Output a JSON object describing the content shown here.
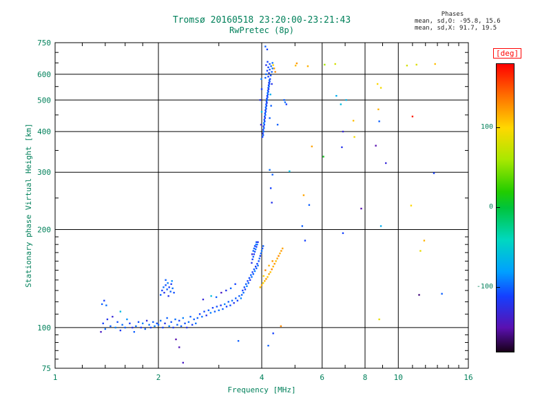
{
  "title": {
    "line1": "Tromsø 20160518 23:20:00-23:21:43",
    "line2": "RwPretec (8p)"
  },
  "stats": {
    "header": "Phases",
    "line_o": "mean, sd,O: -95.8, 15.6",
    "line_x": "mean, sd,X:  91.7, 19.5"
  },
  "colors": {
    "axis_text": "#00805a",
    "frame": "#000000",
    "background": "#ffffff",
    "deg_label": "#ff0000"
  },
  "colorbar": {
    "label": "[deg]",
    "range": [
      -180,
      180
    ],
    "ticks": [
      {
        "deg": 100,
        "label": "100"
      },
      {
        "deg": 0,
        "label": "0"
      },
      {
        "deg": -100,
        "label": "-100"
      }
    ],
    "stops": [
      {
        "deg": -180,
        "color": "#180018"
      },
      {
        "deg": -150,
        "color": "#5a10b0"
      },
      {
        "deg": -110,
        "color": "#1440ff"
      },
      {
        "deg": -80,
        "color": "#00a0ff"
      },
      {
        "deg": -40,
        "color": "#00d8c0"
      },
      {
        "deg": 0,
        "color": "#00c43c"
      },
      {
        "deg": 20,
        "color": "#22cc00"
      },
      {
        "deg": 60,
        "color": "#a8e800"
      },
      {
        "deg": 100,
        "color": "#ffd800"
      },
      {
        "deg": 140,
        "color": "#ff7000"
      },
      {
        "deg": 180,
        "color": "#ff0000"
      }
    ]
  },
  "chart_data": {
    "type": "scatter",
    "title": "Tromsø 20160518 23:20:00-23:21:43 RwPretec (8p)",
    "xlabel": "Frequency [MHz]",
    "ylabel": "Stationary phase Virtual Height [km]",
    "color_label": "[deg]",
    "x_scale": "log",
    "y_scale": "log",
    "xlim": [
      1,
      16
    ],
    "ylim": [
      75,
      750
    ],
    "x_ticks": [
      1,
      2,
      4,
      6,
      8,
      10,
      16
    ],
    "x_minor_ticks": [
      1.2,
      1.4,
      1.6,
      1.8,
      3,
      5,
      7,
      9,
      11,
      12,
      13,
      14,
      15
    ],
    "y_ticks": [
      75,
      100,
      200,
      300,
      400,
      500,
      600,
      750
    ],
    "y_minor_ticks": [
      80,
      85,
      90,
      95,
      110,
      120,
      130,
      140,
      150,
      160,
      170,
      180,
      190,
      250,
      350,
      450,
      550,
      650,
      700
    ],
    "x_gridlines": [
      2,
      4,
      6,
      8,
      10
    ],
    "y_gridlines": [
      100,
      200,
      300,
      400,
      500,
      600
    ],
    "color_range": [
      -180,
      180
    ],
    "points": [
      [
        1.36,
        97,
        -140
      ],
      [
        1.38,
        103,
        -110
      ],
      [
        1.4,
        99,
        -95
      ],
      [
        1.41,
        117,
        -95
      ],
      [
        1.42,
        106,
        -120
      ],
      [
        1.37,
        118,
        -100
      ],
      [
        1.39,
        121,
        -110
      ],
      [
        1.45,
        101,
        -100
      ],
      [
        1.47,
        108,
        -130
      ],
      [
        1.5,
        100,
        -90
      ],
      [
        1.52,
        104,
        -105
      ],
      [
        1.55,
        98,
        -115
      ],
      [
        1.55,
        112,
        -60
      ],
      [
        1.57,
        102,
        -95
      ],
      [
        1.6,
        100,
        -100
      ],
      [
        1.62,
        106,
        -85
      ],
      [
        1.65,
        103,
        -110
      ],
      [
        1.68,
        100,
        -120
      ],
      [
        1.7,
        97,
        -100
      ],
      [
        1.72,
        101,
        -95
      ],
      [
        1.75,
        104,
        -105
      ],
      [
        1.78,
        100,
        -115
      ],
      [
        1.8,
        103,
        -90
      ],
      [
        1.83,
        99,
        -100
      ],
      [
        1.85,
        105,
        -125
      ],
      [
        1.88,
        102,
        -95
      ],
      [
        1.9,
        100,
        -110
      ],
      [
        1.93,
        104,
        -100
      ],
      [
        1.95,
        101,
        -90
      ],
      [
        1.98,
        103,
        -105
      ],
      [
        2.03,
        126,
        -100
      ],
      [
        2.05,
        130,
        -110
      ],
      [
        2.07,
        133,
        -95
      ],
      [
        2.08,
        128,
        -120
      ],
      [
        2.1,
        135,
        -105
      ],
      [
        2.12,
        131,
        -100
      ],
      [
        2.13,
        137,
        -90
      ],
      [
        2.15,
        133,
        -110
      ],
      [
        2.17,
        129,
        -100
      ],
      [
        2.18,
        136,
        -115
      ],
      [
        2.2,
        132,
        -95
      ],
      [
        2.22,
        128,
        -105
      ],
      [
        2.1,
        140,
        -100
      ],
      [
        2.14,
        125,
        -120
      ],
      [
        2.19,
        139,
        -85
      ],
      [
        2.0,
        102,
        -100
      ],
      [
        2.03,
        105,
        -95
      ],
      [
        2.06,
        100,
        -110
      ],
      [
        2.09,
        103,
        -120
      ],
      [
        2.12,
        107,
        -100
      ],
      [
        2.15,
        101,
        -90
      ],
      [
        2.18,
        104,
        -105
      ],
      [
        2.21,
        100,
        -115
      ],
      [
        2.24,
        106,
        -95
      ],
      [
        2.27,
        102,
        -100
      ],
      [
        2.3,
        105,
        -110
      ],
      [
        2.33,
        101,
        -100
      ],
      [
        2.36,
        107,
        -90
      ],
      [
        2.39,
        103,
        -105
      ],
      [
        2.42,
        100,
        -120
      ],
      [
        2.45,
        104,
        -95
      ],
      [
        2.48,
        108,
        -100
      ],
      [
        2.51,
        102,
        -110
      ],
      [
        2.54,
        106,
        -100
      ],
      [
        2.57,
        103,
        -95
      ],
      [
        2.25,
        92,
        -150
      ],
      [
        2.3,
        87,
        -145
      ],
      [
        2.36,
        78,
        -140
      ],
      [
        2.6,
        107,
        -100
      ],
      [
        2.64,
        110,
        -110
      ],
      [
        2.68,
        108,
        -95
      ],
      [
        2.72,
        112,
        -105
      ],
      [
        2.76,
        109,
        -120
      ],
      [
        2.8,
        113,
        -100
      ],
      [
        2.84,
        111,
        -90
      ],
      [
        2.88,
        115,
        -110
      ],
      [
        2.92,
        112,
        -100
      ],
      [
        2.96,
        116,
        -105
      ],
      [
        3.0,
        113,
        -95
      ],
      [
        3.04,
        117,
        -115
      ],
      [
        3.08,
        114,
        -100
      ],
      [
        3.12,
        118,
        -90
      ],
      [
        3.16,
        116,
        -110
      ],
      [
        3.2,
        120,
        -100
      ],
      [
        3.24,
        117,
        -105
      ],
      [
        3.28,
        121,
        -95
      ],
      [
        3.32,
        119,
        -120
      ],
      [
        3.36,
        123,
        -100
      ],
      [
        3.4,
        121,
        -110
      ],
      [
        3.44,
        125,
        -100
      ],
      [
        3.48,
        123,
        -90
      ],
      [
        2.7,
        122,
        -130
      ],
      [
        2.85,
        125,
        -60
      ],
      [
        3.05,
        128,
        -140
      ],
      [
        3.25,
        132,
        -100
      ],
      [
        3.35,
        136,
        -110
      ],
      [
        3.15,
        130,
        -120
      ],
      [
        2.95,
        124,
        -100
      ],
      [
        3.5,
        126,
        -100
      ],
      [
        3.52,
        130,
        -110
      ],
      [
        3.54,
        128,
        -95
      ],
      [
        3.56,
        133,
        -105
      ],
      [
        3.58,
        131,
        -115
      ],
      [
        3.6,
        136,
        -100
      ],
      [
        3.62,
        134,
        -90
      ],
      [
        3.64,
        139,
        -110
      ],
      [
        3.66,
        137,
        -100
      ],
      [
        3.68,
        142,
        -105
      ],
      [
        3.7,
        140,
        -120
      ],
      [
        3.72,
        145,
        -100
      ],
      [
        3.74,
        143,
        -95
      ],
      [
        3.76,
        148,
        -110
      ],
      [
        3.78,
        146,
        -100
      ],
      [
        3.8,
        151,
        -105
      ],
      [
        3.82,
        149,
        -90
      ],
      [
        3.84,
        154,
        -115
      ],
      [
        3.86,
        152,
        -100
      ],
      [
        3.88,
        157,
        -110
      ],
      [
        3.9,
        155,
        -95
      ],
      [
        3.92,
        160,
        -105
      ],
      [
        3.94,
        163,
        -100
      ],
      [
        3.96,
        166,
        -110
      ],
      [
        3.98,
        169,
        -100
      ],
      [
        4.0,
        172,
        -95
      ],
      [
        4.02,
        175,
        -105
      ],
      [
        4.04,
        178,
        -100
      ],
      [
        3.74,
        158,
        -120
      ],
      [
        3.76,
        162,
        -110
      ],
      [
        3.78,
        165,
        -100
      ],
      [
        3.8,
        168,
        -115
      ],
      [
        3.82,
        171,
        -105
      ],
      [
        3.84,
        174,
        -95
      ],
      [
        3.86,
        177,
        -110
      ],
      [
        3.88,
        180,
        -100
      ],
      [
        3.9,
        183,
        -120
      ],
      [
        3.78,
        172,
        -100
      ],
      [
        3.82,
        178,
        -110
      ],
      [
        3.86,
        183,
        -105
      ],
      [
        3.75,
        168,
        -130
      ],
      [
        3.8,
        175,
        -100
      ],
      [
        3.85,
        180,
        -90
      ],
      [
        3.42,
        91,
        -100
      ],
      [
        4.18,
        88,
        -100
      ],
      [
        4.32,
        96,
        -110
      ],
      [
        3.96,
        133,
        110
      ],
      [
        4.0,
        135,
        120
      ],
      [
        4.04,
        137,
        100
      ],
      [
        4.08,
        139,
        115
      ],
      [
        4.12,
        141,
        125
      ],
      [
        4.16,
        143,
        105
      ],
      [
        4.2,
        146,
        120
      ],
      [
        4.24,
        148,
        110
      ],
      [
        4.28,
        151,
        130
      ],
      [
        4.32,
        154,
        115
      ],
      [
        4.36,
        157,
        125
      ],
      [
        4.4,
        160,
        110
      ],
      [
        4.44,
        163,
        120
      ],
      [
        4.48,
        166,
        130
      ],
      [
        4.52,
        169,
        115
      ],
      [
        4.56,
        172,
        125
      ],
      [
        4.6,
        175,
        120
      ],
      [
        4.1,
        150,
        130
      ],
      [
        4.2,
        155,
        115
      ],
      [
        4.3,
        160,
        125
      ],
      [
        4.05,
        144,
        105
      ],
      [
        4.55,
        101,
        130
      ],
      [
        4.02,
        385,
        -110
      ],
      [
        4.04,
        390,
        -100
      ],
      [
        4.03,
        395,
        -120
      ],
      [
        4.05,
        400,
        -95
      ],
      [
        4.04,
        405,
        -110
      ],
      [
        4.06,
        410,
        -100
      ],
      [
        4.05,
        415,
        -115
      ],
      [
        4.07,
        420,
        -105
      ],
      [
        4.06,
        425,
        -90
      ],
      [
        4.08,
        430,
        -110
      ],
      [
        4.07,
        435,
        -100
      ],
      [
        4.09,
        440,
        -120
      ],
      [
        4.08,
        445,
        -105
      ],
      [
        4.1,
        450,
        -95
      ],
      [
        4.09,
        455,
        -110
      ],
      [
        4.11,
        460,
        -100
      ],
      [
        4.1,
        465,
        -115
      ],
      [
        4.12,
        470,
        -105
      ],
      [
        4.11,
        475,
        -95
      ],
      [
        4.13,
        480,
        -110
      ],
      [
        4.12,
        485,
        -100
      ],
      [
        4.14,
        490,
        -120
      ],
      [
        4.13,
        495,
        -105
      ],
      [
        4.15,
        500,
        -95
      ],
      [
        4.14,
        505,
        -110
      ],
      [
        4.16,
        510,
        -100
      ],
      [
        4.15,
        515,
        -115
      ],
      [
        4.17,
        520,
        -105
      ],
      [
        4.16,
        525,
        -90
      ],
      [
        4.18,
        530,
        -110
      ],
      [
        4.17,
        535,
        -100
      ],
      [
        4.19,
        540,
        -120
      ],
      [
        4.18,
        545,
        -105
      ],
      [
        4.2,
        550,
        -95
      ],
      [
        4.19,
        555,
        -110
      ],
      [
        4.21,
        560,
        -100
      ],
      [
        4.2,
        565,
        -115
      ],
      [
        4.22,
        570,
        -105
      ],
      [
        4.21,
        575,
        -95
      ],
      [
        4.23,
        580,
        -110
      ],
      [
        4.1,
        585,
        -100
      ],
      [
        4.18,
        590,
        -110
      ],
      [
        4.25,
        595,
        -105
      ],
      [
        4.12,
        600,
        -95
      ],
      [
        4.2,
        605,
        -115
      ],
      [
        4.28,
        610,
        -100
      ],
      [
        4.15,
        615,
        -110
      ],
      [
        4.22,
        620,
        -105
      ],
      [
        4.3,
        625,
        -95
      ],
      [
        4.18,
        630,
        -110
      ],
      [
        4.26,
        635,
        -100
      ],
      [
        4.12,
        640,
        -120
      ],
      [
        4.22,
        645,
        -105
      ],
      [
        4.3,
        650,
        -95
      ],
      [
        4.16,
        655,
        -110
      ],
      [
        3.98,
        420,
        -130
      ],
      [
        4.0,
        460,
        -60
      ],
      [
        4.22,
        440,
        -100
      ],
      [
        3.96,
        500,
        -120
      ],
      [
        4.24,
        520,
        -70
      ],
      [
        4.0,
        540,
        -110
      ],
      [
        4.26,
        480,
        -100
      ],
      [
        3.99,
        580,
        -90
      ],
      [
        4.28,
        560,
        -120
      ],
      [
        4.1,
        730,
        -100
      ],
      [
        4.15,
        715,
        -110
      ],
      [
        4.35,
        625,
        120
      ],
      [
        4.32,
        640,
        100
      ],
      [
        4.38,
        610,
        130
      ],
      [
        5.02,
        638,
        110
      ],
      [
        5.06,
        648,
        125
      ],
      [
        5.45,
        635,
        115
      ],
      [
        4.65,
        500,
        -100
      ],
      [
        4.72,
        485,
        -110
      ],
      [
        4.68,
        492,
        -95
      ],
      [
        4.25,
        268,
        -110
      ],
      [
        4.3,
        295,
        -100
      ],
      [
        4.22,
        305,
        -95
      ],
      [
        4.28,
        242,
        -120
      ],
      [
        4.45,
        420,
        -100
      ],
      [
        4.82,
        302,
        -60
      ],
      [
        5.25,
        205,
        -100
      ],
      [
        5.3,
        255,
        120
      ],
      [
        5.35,
        185,
        -110
      ],
      [
        5.5,
        238,
        -100
      ],
      [
        5.6,
        360,
        120
      ],
      [
        6.05,
        335,
        10
      ],
      [
        6.1,
        642,
        60
      ],
      [
        6.55,
        645,
        80
      ],
      [
        6.6,
        515,
        -70
      ],
      [
        6.8,
        485,
        -60
      ],
      [
        6.85,
        358,
        -120
      ],
      [
        6.9,
        400,
        -130
      ],
      [
        6.9,
        195,
        -110
      ],
      [
        7.05,
        500,
        -65
      ],
      [
        7.4,
        432,
        110
      ],
      [
        7.45,
        385,
        95
      ],
      [
        7.8,
        232,
        -150
      ],
      [
        8.6,
        362,
        -150
      ],
      [
        8.7,
        560,
        100
      ],
      [
        8.75,
        468,
        115
      ],
      [
        8.8,
        430,
        -100
      ],
      [
        8.8,
        106,
        90
      ],
      [
        8.9,
        205,
        -70
      ],
      [
        8.9,
        545,
        95
      ],
      [
        9.2,
        320,
        -130
      ],
      [
        10.6,
        638,
        80
      ],
      [
        10.9,
        237,
        100
      ],
      [
        11.0,
        445,
        170
      ],
      [
        11.3,
        642,
        85
      ],
      [
        11.5,
        126,
        -160
      ],
      [
        11.6,
        172,
        90
      ],
      [
        11.9,
        185,
        115
      ],
      [
        12.7,
        298,
        -110
      ],
      [
        12.8,
        645,
        110
      ],
      [
        13.4,
        127,
        -100
      ]
    ]
  }
}
